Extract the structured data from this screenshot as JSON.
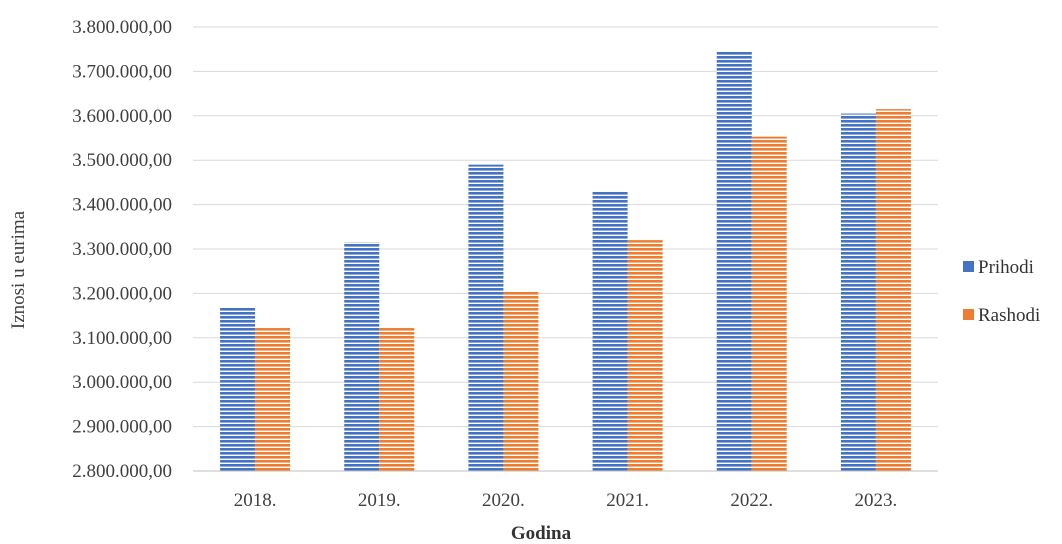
{
  "chart_data": {
    "type": "bar",
    "title": "",
    "xlabel": "Godina",
    "ylabel": "Iznosi u eurima",
    "categories": [
      "2018.",
      "2019.",
      "2020.",
      "2021.",
      "2022.",
      "2023."
    ],
    "series": [
      {
        "name": "Prihodi",
        "color": "#4472C4",
        "values": [
          3168000,
          3315000,
          3490000,
          3430000,
          3745000,
          3605000
        ]
      },
      {
        "name": "Rashodi",
        "color": "#ED7D31",
        "values": [
          3122000,
          3122000,
          3205000,
          3320000,
          3553000,
          3615000
        ]
      }
    ],
    "ylim": [
      2800000,
      3800000
    ],
    "ytick_labels": [
      "2.800.000,00",
      "2.900.000,00",
      "3.000.000,00",
      "3.100.000,00",
      "3.200.000,00",
      "3.300.000,00",
      "3.400.000,00",
      "3.500.000,00",
      "3.600.000,00",
      "3.700.000,00",
      "3.800.000,00"
    ],
    "grid": true,
    "legend_position": "right"
  }
}
